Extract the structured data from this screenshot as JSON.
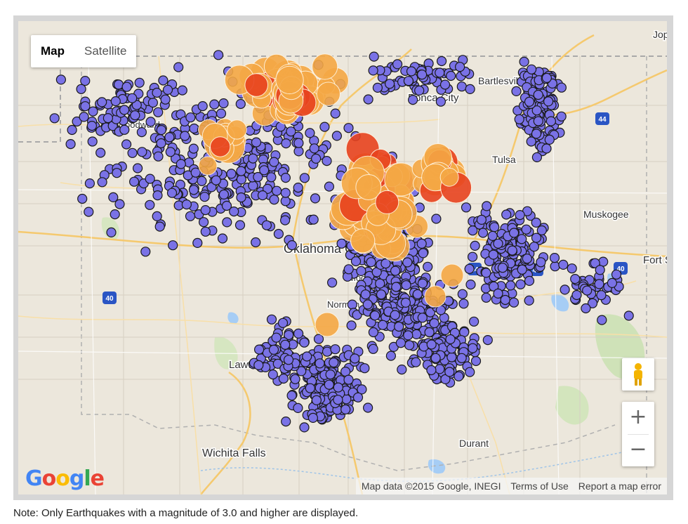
{
  "map": {
    "type_control": {
      "map_label": "Map",
      "satellite_label": "Satellite",
      "selected": "Map"
    },
    "place_labels": [
      "Woodward",
      "Ponca City",
      "Bartlesville",
      "Tulsa",
      "Muskogee",
      "Oklahoma City",
      "Moore",
      "Norman",
      "Lawton",
      "Wichita Falls",
      "Durant",
      "Fort Smith",
      "Joplin"
    ],
    "highway_shields": [
      "44",
      "40",
      "40",
      "40",
      "44"
    ],
    "zoom_in_label": "+",
    "zoom_out_label": "−",
    "logo": {
      "letters": [
        "G",
        "o",
        "o",
        "g",
        "l",
        "e"
      ],
      "colors": [
        "#4285F4",
        "#EA4335",
        "#FBBC05",
        "#4285F4",
        "#34A853",
        "#EA4335"
      ]
    },
    "attribution": {
      "data": "Map data ©2015 Google, INEGI",
      "terms": "Terms of Use",
      "report": "Report a map error"
    }
  },
  "legend_colors": {
    "small_quake": "#7a72e6",
    "medium_quake": "#f5a845",
    "large_quake": "#e8431f"
  },
  "note": "Note: Only Earthquakes with a magnitude of 3.0 and higher are displayed."
}
